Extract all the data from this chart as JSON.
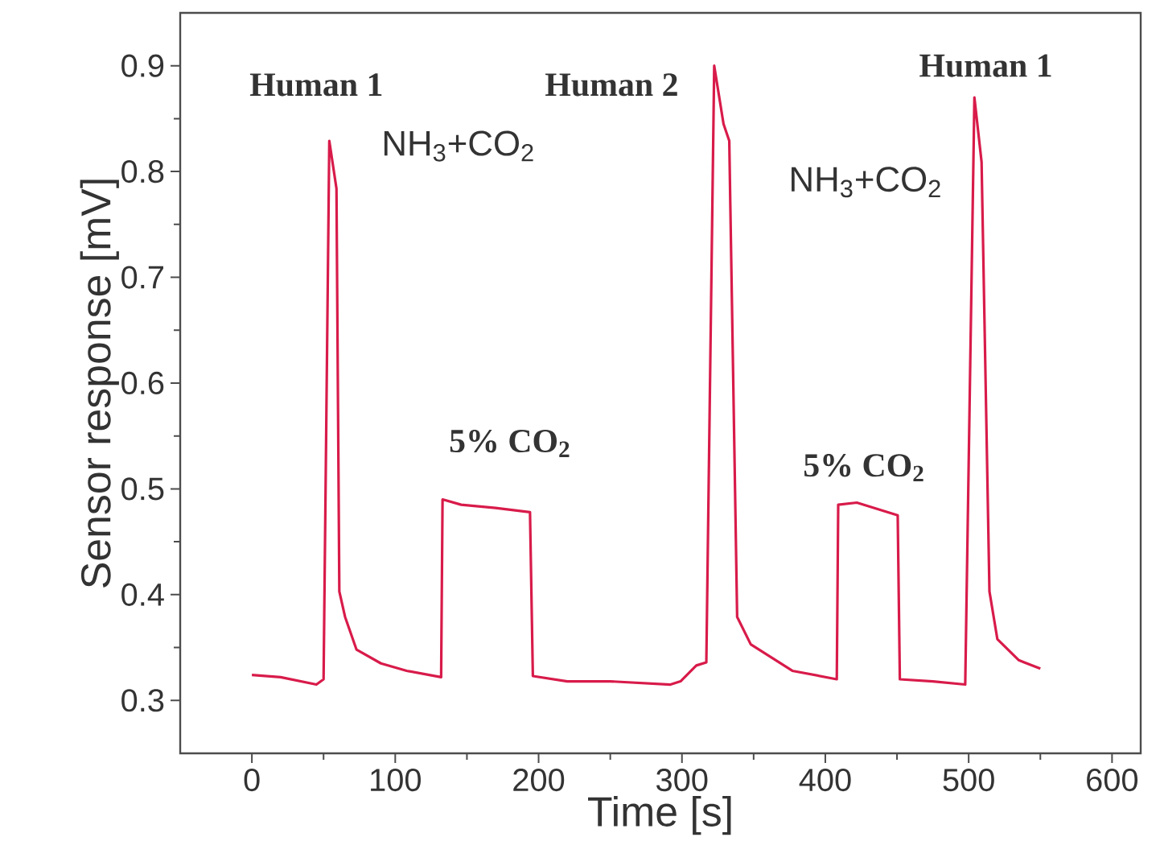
{
  "chart_data": {
    "type": "line",
    "xlabel": "Time [s]",
    "ylabel": "Sensor response [mV]",
    "xlim": [
      -50,
      620
    ],
    "ylim": [
      0.25,
      0.95
    ],
    "xticks": [
      0,
      100,
      200,
      300,
      400,
      500,
      600
    ],
    "yticks": [
      0.3,
      0.4,
      0.5,
      0.6,
      0.7,
      0.8,
      0.9
    ],
    "grid": false,
    "marker": "none",
    "line_style": "solid",
    "series": [
      {
        "color": "#d81b4a",
        "x": [
          0,
          20,
          45,
          50,
          54,
          59,
          61,
          65,
          73,
          90,
          108,
          132,
          133,
          146,
          170,
          194,
          196,
          220,
          250,
          292,
          299,
          310,
          317,
          322.5,
          329,
          333,
          338.5,
          348,
          377,
          408,
          409,
          422,
          450.5,
          452,
          475,
          497.6,
          504,
          509,
          514.5,
          520,
          535,
          550
        ],
        "values": [
          0.324,
          0.322,
          0.315,
          0.32,
          0.829,
          0.784,
          0.403,
          0.379,
          0.348,
          0.335,
          0.328,
          0.322,
          0.49,
          0.485,
          0.482,
          0.478,
          0.323,
          0.318,
          0.318,
          0.315,
          0.318,
          0.333,
          0.336,
          0.9,
          0.845,
          0.829,
          0.379,
          0.353,
          0.328,
          0.32,
          0.485,
          0.487,
          0.475,
          0.32,
          0.318,
          0.315,
          0.87,
          0.809,
          0.403,
          0.358,
          0.338,
          0.33
        ]
      }
    ],
    "annotations": [
      "Human 1",
      "NH$_{3}$+CO$_{2}$",
      "5% CO$_{2}$",
      "Human 2",
      "NH$_{3}$+CO$_{2}$",
      "5% CO$_{2}$",
      "Human 1"
    ]
  }
}
